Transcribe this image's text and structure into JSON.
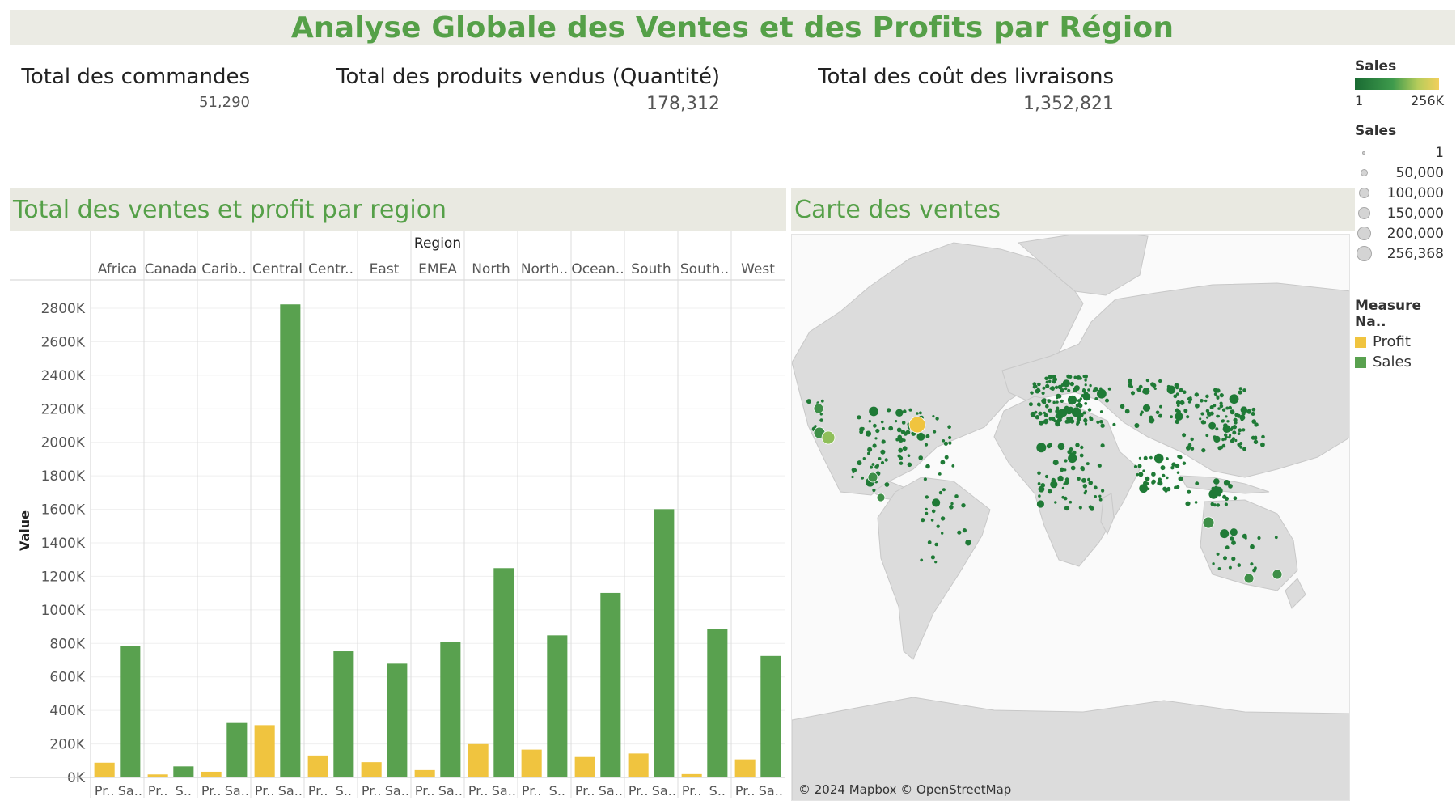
{
  "title": "Analyse Globale des Ventes et des Profits par Région",
  "kpis": [
    {
      "label": "Total des commandes",
      "value": "51,290"
    },
    {
      "label": "Total des produits vendus (Quantité)",
      "value": "178,312"
    },
    {
      "label": "Total des coût des livraisons",
      "value": "1,352,821"
    }
  ],
  "bar_panel": {
    "title": "Total des ventes et profit par region"
  },
  "map_panel": {
    "title": "Carte des ventes",
    "credit": "© 2024 Mapbox © OpenStreetMap"
  },
  "legend": {
    "color_title": "Sales",
    "color_min": "1",
    "color_max": "256K",
    "size_title": "Sales",
    "size_values": [
      "1",
      "50,000",
      "100,000",
      "150,000",
      "200,000",
      "256,368"
    ],
    "measure_title": "Measure Na..",
    "measures": [
      {
        "name": "Profit",
        "color": "#f0c43f"
      },
      {
        "name": "Sales",
        "color": "#59a14f"
      }
    ]
  },
  "chart_data": {
    "type": "bar",
    "title": "",
    "column_header": "Region",
    "ylabel": "Value",
    "ylim": [
      0,
      2900000
    ],
    "yticks": [
      0,
      200000,
      400000,
      600000,
      800000,
      1000000,
      1200000,
      1400000,
      1600000,
      1800000,
      2000000,
      2200000,
      2400000,
      2600000,
      2800000
    ],
    "ytick_labels": [
      "0K",
      "200K",
      "400K",
      "600K",
      "800K",
      "1000K",
      "1200K",
      "1400K",
      "1600K",
      "1800K",
      "2000K",
      "2200K",
      "2400K",
      "2600K",
      "2800K"
    ],
    "categories": [
      "Africa",
      "Canada",
      "Carib..",
      "Central",
      "Centr..",
      "East",
      "EMEA",
      "North",
      "North..",
      "Ocean..",
      "South",
      "South..",
      "West"
    ],
    "bar_labels": [
      [
        "Pr..",
        "Sa.."
      ],
      [
        "Pr..",
        "S.."
      ],
      [
        "Pr..",
        "Sa.."
      ],
      [
        "Pr..",
        "Sa.."
      ],
      [
        "Pr..",
        "S.."
      ],
      [
        "Pr..",
        "Sa.."
      ],
      [
        "Pr..",
        "Sa.."
      ],
      [
        "Pr..",
        "Sa.."
      ],
      [
        "Pr..",
        "S.."
      ],
      [
        "Pr..",
        "Sa.."
      ],
      [
        "Pr..",
        "Sa.."
      ],
      [
        "Pr..",
        "S.."
      ],
      [
        "Pr..",
        "Sa.."
      ]
    ],
    "series": [
      {
        "name": "Profit",
        "color": "#f0c43f",
        "values": [
          88000,
          18000,
          34000,
          312000,
          131000,
          91000,
          44000,
          199000,
          166000,
          122000,
          143000,
          20000,
          108000
        ]
      },
      {
        "name": "Sales",
        "color": "#59a14f",
        "values": [
          784000,
          66000,
          325000,
          2823000,
          753000,
          679000,
          807000,
          1249000,
          848000,
          1101000,
          1601000,
          884000,
          725000
        ]
      }
    ],
    "grid": true,
    "legend": "right"
  }
}
